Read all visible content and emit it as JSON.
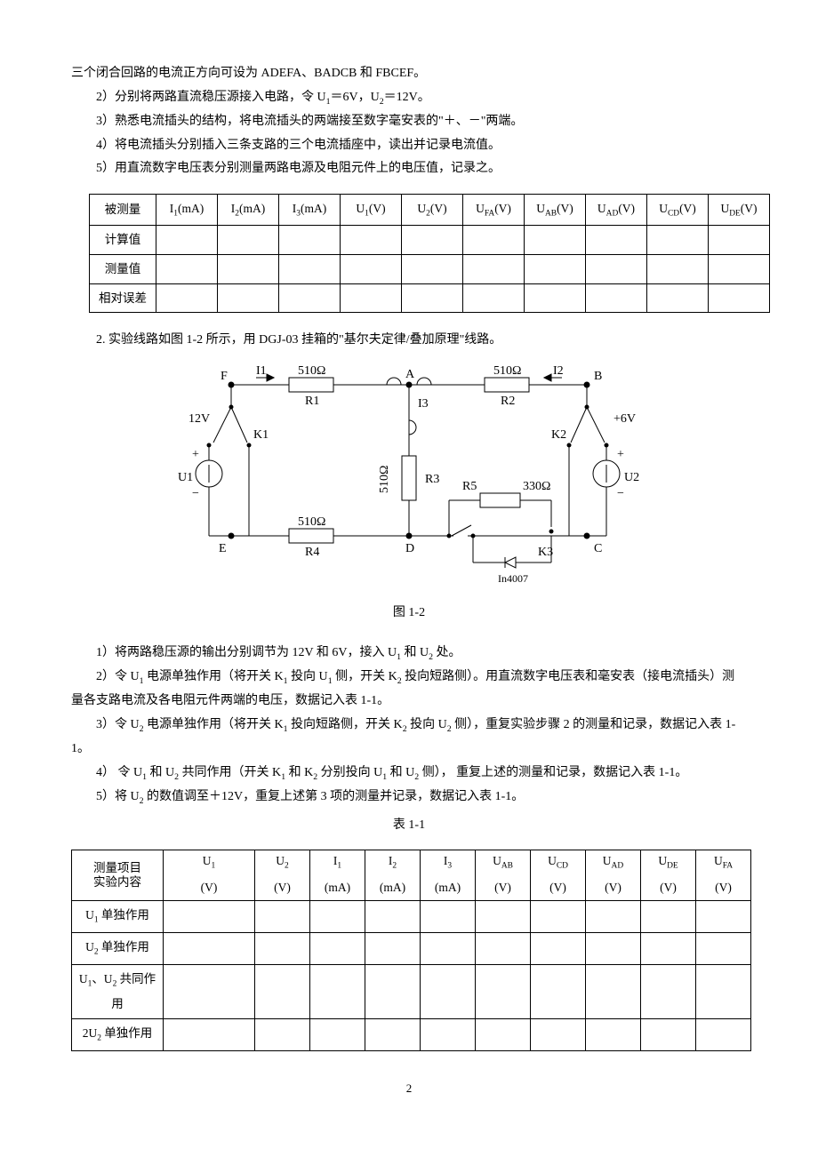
{
  "intro": "三个闭合回路的电流正方向可设为 ADEFA、BADCB 和 FBCEF。",
  "steps_a": {
    "s2": "2）分别将两路直流稳压源接入电路，令 U₁＝6V，U₂＝12V。",
    "s3": "3）熟悉电流插头的结构，将电流插头的两端接至数字毫安表的\"＋、－\"两端。",
    "s4": "4）将电流插头分别插入三条支路的三个电流插座中，读出并记录电流值。",
    "s5": "5）用直流数字电压表分别测量两路电源及电阻元件上的电压值，记录之。"
  },
  "table1": {
    "headers": [
      "被测量",
      "I₁(mA)",
      "I₂(mA)",
      "I₃(mA)",
      "U₁(V)",
      "U₂(V)",
      "U_FA(V)",
      "U_AB(V)",
      "U_AD(V)",
      "U_CD(V)",
      "U_DE(V)"
    ],
    "rows": [
      "计算值",
      "测量值",
      "相对误差"
    ]
  },
  "part2_intro": "2. 实验线路如图 1-2 所示，用 DGJ-03 挂箱的\"基尔夫定律/叠加原理\"线路。",
  "fig": {
    "caption": "图  1-2",
    "nodes": {
      "F": "F",
      "A": "A",
      "B": "B",
      "E": "E",
      "D": "D",
      "C": "C"
    },
    "labels": {
      "I1": "I₁",
      "I2": "I₂",
      "I3": "I₃",
      "R1": "R₁",
      "R2": "R₂",
      "R3": "R₃",
      "R4": "R₄",
      "R5": "R₅",
      "K1": "K₁",
      "K2": "K₂",
      "K3": "K₃",
      "U1": "U₁",
      "U2": "U₂",
      "r510": "510Ω",
      "r330": "330Ω",
      "v12": "12V",
      "v6": "+6V",
      "diode": "In4007"
    },
    "style": {
      "stroke": "#000",
      "stroke_width": 1,
      "bg": "#ffffff",
      "font": "14"
    }
  },
  "steps_b": {
    "s1": "1）将两路稳压源的输出分别调节为 12V 和 6V，接入 U₁ 和 U₂ 处。",
    "s2": "2）令 U₁ 电源单独作用（将开关 K₁ 投向 U₁ 侧，开关 K₂ 投向短路侧）。用直流数字电压表和毫安表（接电流插头）测量各支路电流及各电阻元件两端的电压，数据记入表 1-1。",
    "s3": "3）令 U₂ 电源单独作用（将开关 K₁ 投向短路侧，开关 K₂ 投向 U₂ 侧），重复实验步骤 2 的测量和记录，数据记入表 1-1。",
    "s4": "4）  令 U₁ 和 U₂ 共同作用（开关 K₁ 和 K₂ 分别投向 U₁ 和 U₂ 侧），  重复上述的测量和记录，数据记入表 1-1。",
    "s5": "5）将 U₂ 的数值调至＋12V，重复上述第 3 项的测量并记录，数据记入表 1-1。"
  },
  "table2": {
    "caption": "表  1-1",
    "head_top": [
      "测量项目",
      "U₁",
      "U₂",
      "I₁",
      "I₂",
      "I₃",
      "U_AB",
      "U_CD",
      "U_AD",
      "U_DE",
      "U_FA"
    ],
    "head_bot": [
      "实验内容",
      "(V)",
      "(V)",
      "(mA)",
      "(mA)",
      "(mA)",
      "(V)",
      "(V)",
      "(V)",
      "(V)",
      "(V)"
    ],
    "rows": [
      "U₁ 单独作用",
      "U₂ 单独作用",
      "U₁、U₂ 共同作用",
      "2U₂ 单独作用"
    ]
  },
  "pagenum": "2"
}
